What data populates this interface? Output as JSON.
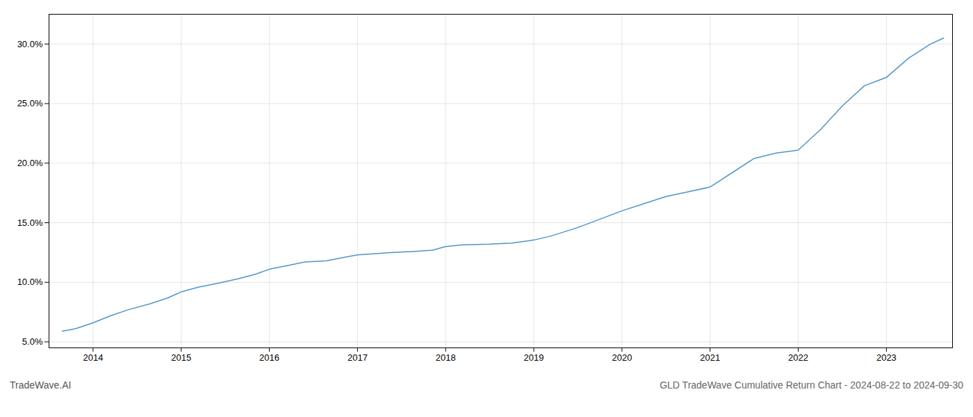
{
  "chart_data": {
    "type": "line",
    "title": "GLD TradeWave Cumulative Return Chart - 2024-08-22 to 2024-09-30",
    "annotations": [
      "TradeWave.AI"
    ],
    "x": [
      2013.65,
      2013.8,
      2014.0,
      2014.2,
      2014.4,
      2014.65,
      2014.85,
      2015.0,
      2015.2,
      2015.4,
      2015.65,
      2015.85,
      2016.0,
      2016.2,
      2016.4,
      2016.65,
      2016.85,
      2017.0,
      2017.2,
      2017.4,
      2017.65,
      2017.85,
      2018.0,
      2018.2,
      2018.5,
      2018.75,
      2019.0,
      2019.2,
      2019.5,
      2019.75,
      2020.0,
      2020.25,
      2020.5,
      2020.75,
      2021.0,
      2021.25,
      2021.5,
      2021.75,
      2022.0,
      2022.25,
      2022.5,
      2022.75,
      2023.0,
      2023.25,
      2023.5,
      2023.65
    ],
    "values": [
      5.9,
      6.1,
      6.6,
      7.2,
      7.7,
      8.2,
      8.7,
      9.2,
      9.6,
      9.9,
      10.3,
      10.7,
      11.1,
      11.4,
      11.7,
      11.8,
      12.1,
      12.3,
      12.4,
      12.5,
      12.6,
      12.7,
      13.0,
      13.15,
      13.2,
      13.3,
      13.55,
      13.9,
      14.6,
      15.3,
      16.0,
      16.6,
      17.2,
      17.6,
      18.0,
      19.2,
      20.4,
      20.85,
      21.1,
      22.8,
      24.8,
      26.5,
      27.2,
      28.8,
      30.0,
      30.5
    ],
    "color": "#4d94c9",
    "xlim": [
      2013.5,
      2023.75
    ],
    "xticks": [
      2014,
      2015,
      2016,
      2017,
      2018,
      2019,
      2020,
      2021,
      2022,
      2023
    ],
    "ylim": [
      4.5,
      32.5
    ],
    "yticks": [
      {
        "value": 5.0,
        "label": "5.0%"
      },
      {
        "value": 10.0,
        "label": "10.0%"
      },
      {
        "value": 15.0,
        "label": "15.0%"
      },
      {
        "value": 20.0,
        "label": "20.0%"
      },
      {
        "value": 25.0,
        "label": "25.0%"
      },
      {
        "value": 30.0,
        "label": "30.0%"
      }
    ],
    "grid": true
  }
}
